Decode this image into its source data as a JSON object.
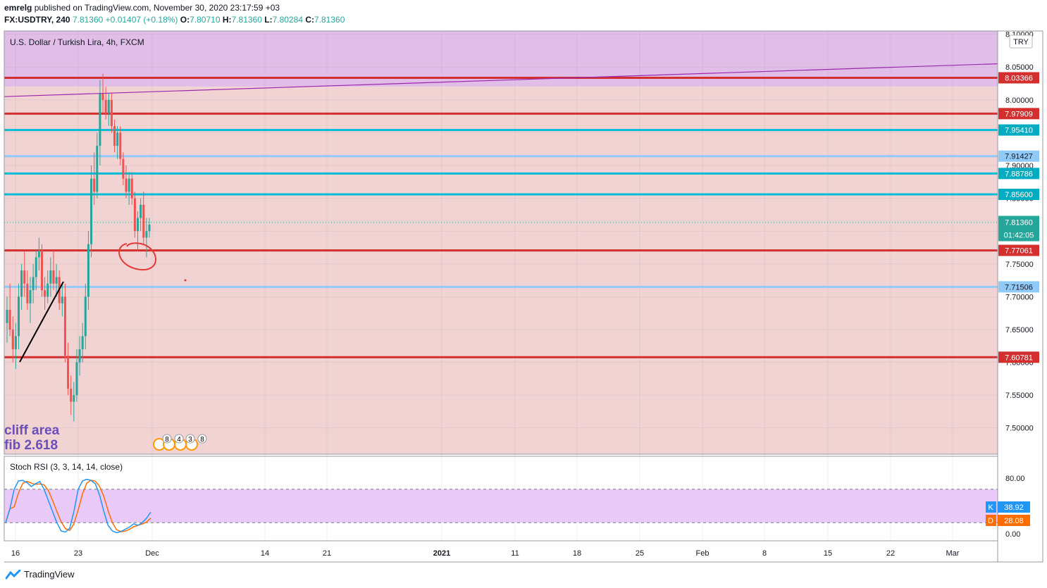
{
  "header": {
    "author": "emrelg",
    "published_text": "published on TradingView.com, November 30, 2020 23:17:59 +03",
    "symbol": "FX:USDTRY, 240",
    "last": "7.81360",
    "change": "+0.01407 (+0.18%)",
    "open_label": "O:",
    "open": "7.80710",
    "high_label": "H:",
    "high": "7.81360",
    "low_label": "L:",
    "low": "7.80284",
    "close_label": "C:",
    "close": "7.81360"
  },
  "pane_title": "U.S. Dollar / Turkish Lira, 4h, FXCM",
  "currency_button": "TRY",
  "annotation": {
    "line1": "cliff area",
    "line2": "fib 2.618"
  },
  "events": [
    "8",
    "4",
    "3",
    "8"
  ],
  "countdown": "01:42:05",
  "stoch": {
    "label": "Stoch RSI (3, 3, 14, 14, close)",
    "k_label": "K",
    "k_value": "38.92",
    "d_label": "D",
    "d_value": "28.08",
    "upper": "80.00",
    "lower": "0.00",
    "k_color": "#2196f3",
    "d_color": "#ff6d00"
  },
  "logo": "TradingView",
  "colors": {
    "up": "#26a69a",
    "down": "#ef5350",
    "zone_purple": "#e1bee7",
    "zone_pink": "#f2d3d3",
    "red_line": "#d32f2f",
    "teal_line": "#00bcd4",
    "lightblue_line": "#90caf9"
  },
  "chart_data": {
    "type": "candlestick",
    "title": "U.S. Dollar / Turkish Lira, 4h, FXCM",
    "ylim": [
      7.46,
      8.105
    ],
    "y_ticks": [
      "7.50000",
      "7.55000",
      "7.60000",
      "7.65000",
      "7.70000",
      "7.75000",
      "7.80000",
      "7.85000",
      "7.90000",
      "7.95000",
      "8.00000",
      "8.05000",
      "8.10000"
    ],
    "x_ticks": [
      "16",
      "23",
      "Dec",
      "14",
      "21",
      "2021",
      "11",
      "18",
      "25",
      "Feb",
      "8",
      "15",
      "22",
      "Mar"
    ],
    "horizontal_levels": [
      {
        "value": 8.03366,
        "label": "8.03366",
        "kind": "red"
      },
      {
        "value": 7.97909,
        "label": "7.97909",
        "kind": "red"
      },
      {
        "value": 7.9541,
        "label": "7.95410",
        "kind": "teal"
      },
      {
        "value": 7.91427,
        "label": "7.91427",
        "kind": "lightblue"
      },
      {
        "value": 7.88786,
        "label": "7.88786",
        "kind": "teal"
      },
      {
        "value": 7.856,
        "label": "7.85600",
        "kind": "teal"
      },
      {
        "value": 7.77061,
        "label": "7.77061",
        "kind": "red"
      },
      {
        "value": 7.71506,
        "label": "7.71506",
        "kind": "lightblue"
      },
      {
        "value": 7.60781,
        "label": "7.60781",
        "kind": "red"
      }
    ],
    "last_price": {
      "value": 7.8136,
      "label": "7.81360"
    },
    "zones": [
      {
        "kind": "purple",
        "from": 8.02,
        "to": 8.105
      },
      {
        "kind": "pink",
        "from": 7.46,
        "to": 8.02
      }
    ],
    "trendline": {
      "from": 8.005,
      "to": 8.055
    },
    "candles_ohlc": [
      [
        7.66,
        7.7,
        7.63,
        7.68
      ],
      [
        7.68,
        7.72,
        7.64,
        7.65
      ],
      [
        7.65,
        7.67,
        7.6,
        7.62
      ],
      [
        7.62,
        7.66,
        7.59,
        7.64
      ],
      [
        7.64,
        7.72,
        7.62,
        7.7
      ],
      [
        7.7,
        7.75,
        7.68,
        7.74
      ],
      [
        7.74,
        7.77,
        7.7,
        7.72
      ],
      [
        7.72,
        7.74,
        7.68,
        7.69
      ],
      [
        7.69,
        7.73,
        7.66,
        7.71
      ],
      [
        7.71,
        7.75,
        7.69,
        7.73
      ],
      [
        7.73,
        7.77,
        7.71,
        7.76
      ],
      [
        7.76,
        7.79,
        7.74,
        7.77
      ],
      [
        7.77,
        7.78,
        7.7,
        7.71
      ],
      [
        7.71,
        7.73,
        7.68,
        7.7
      ],
      [
        7.7,
        7.74,
        7.69,
        7.72
      ],
      [
        7.72,
        7.76,
        7.7,
        7.74
      ],
      [
        7.74,
        7.77,
        7.71,
        7.72
      ],
      [
        7.72,
        7.75,
        7.7,
        7.73
      ],
      [
        7.73,
        7.74,
        7.68,
        7.69
      ],
      [
        7.69,
        7.72,
        7.67,
        7.7
      ],
      [
        7.7,
        7.72,
        7.6,
        7.61
      ],
      [
        7.61,
        7.63,
        7.55,
        7.56
      ],
      [
        7.56,
        7.58,
        7.52,
        7.54
      ],
      [
        7.54,
        7.57,
        7.51,
        7.55
      ],
      [
        7.55,
        7.62,
        7.54,
        7.6
      ],
      [
        7.6,
        7.64,
        7.58,
        7.62
      ],
      [
        7.62,
        7.66,
        7.6,
        7.64
      ],
      [
        7.64,
        7.72,
        7.62,
        7.7
      ],
      [
        7.7,
        7.8,
        7.68,
        7.78
      ],
      [
        7.78,
        7.9,
        7.76,
        7.88
      ],
      [
        7.88,
        7.92,
        7.84,
        7.86
      ],
      [
        7.86,
        7.95,
        7.85,
        7.93
      ],
      [
        7.93,
        8.03,
        7.9,
        8.01
      ],
      [
        8.01,
        8.04,
        7.98,
        8.0
      ],
      [
        8.0,
        8.02,
        7.97,
        7.98
      ],
      [
        7.98,
        8.01,
        7.96,
        8.0
      ],
      [
        8.0,
        8.01,
        7.95,
        7.96
      ],
      [
        7.96,
        7.97,
        7.92,
        7.93
      ],
      [
        7.93,
        7.96,
        7.91,
        7.95
      ],
      [
        7.95,
        7.96,
        7.9,
        7.91
      ],
      [
        7.91,
        7.92,
        7.87,
        7.88
      ],
      [
        7.88,
        7.9,
        7.85,
        7.86
      ],
      [
        7.86,
        7.89,
        7.84,
        7.88
      ],
      [
        7.88,
        7.89,
        7.84,
        7.85
      ],
      [
        7.85,
        7.86,
        7.79,
        7.8
      ],
      [
        7.8,
        7.83,
        7.77,
        7.82
      ],
      [
        7.82,
        7.85,
        7.8,
        7.84
      ],
      [
        7.84,
        7.86,
        7.78,
        7.79
      ],
      [
        7.79,
        7.82,
        7.76,
        7.8
      ],
      [
        7.8,
        7.82,
        7.79,
        7.81
      ]
    ]
  }
}
